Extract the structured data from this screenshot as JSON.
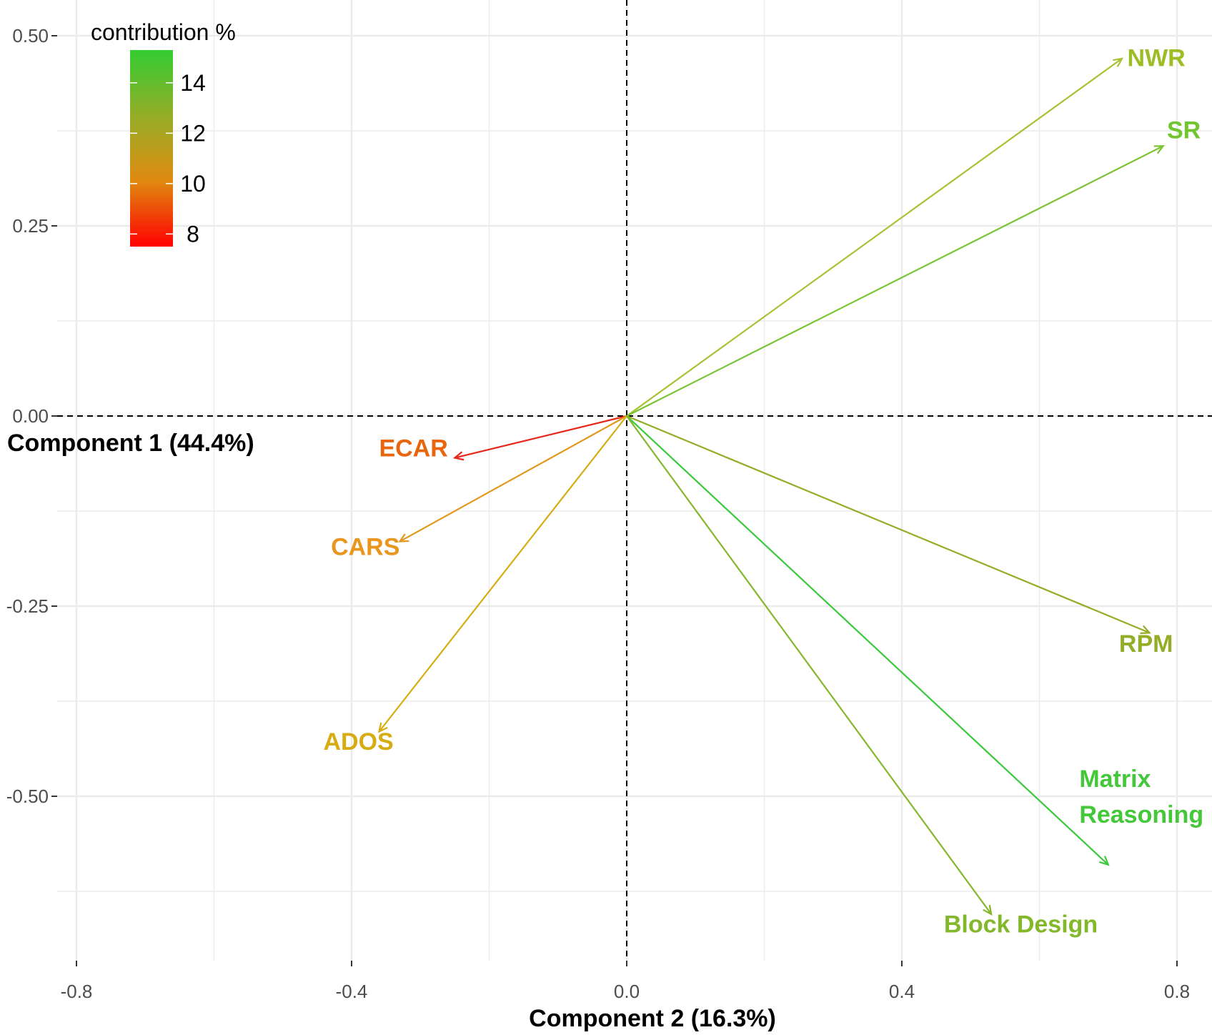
{
  "chart_data": {
    "type": "biplot",
    "xlabel": "Component 2 (16.3%)",
    "ylabel": "Component 1 (44.4%)",
    "xlim": [
      -0.82,
      0.82
    ],
    "ylim": [
      -0.66,
      0.54
    ],
    "x_ticks": [
      -0.8,
      -0.4,
      0.0,
      0.4,
      0.8
    ],
    "x_tick_labels": [
      "-0.8",
      "-0.4",
      "0.0",
      "0.4",
      "0.8"
    ],
    "y_ticks": [
      0.5,
      0.25,
      0.0,
      -0.25,
      -0.5
    ],
    "y_tick_labels": [
      "0.50",
      "0.25",
      "0.00",
      "-0.25",
      "-0.50"
    ],
    "grid": true,
    "reference_lines": {
      "x": 0,
      "y": 0,
      "style": "dashed"
    },
    "variables": [
      {
        "name": "NWR",
        "x": 0.72,
        "y": 0.47,
        "color": "#9dbd26",
        "line_color": "#a6c232",
        "label_x": 0.77,
        "label_y": 0.46
      },
      {
        "name": "SR",
        "x": 0.78,
        "y": 0.355,
        "color": "#72c530",
        "line_color": "#7cc433",
        "label_x": 0.81,
        "label_y": 0.365
      },
      {
        "name": "ECAR",
        "x": -0.25,
        "y": -0.055,
        "color": "#e8650e",
        "line_color": "#e8271c",
        "label_x": -0.31,
        "label_y": -0.053
      },
      {
        "name": "CARS",
        "x": -0.33,
        "y": -0.165,
        "color": "#e8961e",
        "line_color": "#e3981e",
        "label_x": -0.38,
        "label_y": -0.183
      },
      {
        "name": "ADOS",
        "x": -0.36,
        "y": -0.415,
        "color": "#d6ac12",
        "line_color": "#d6ac12",
        "label_x": -0.39,
        "label_y": -0.439
      },
      {
        "name": "RPM",
        "x": 0.76,
        "y": -0.285,
        "color": "#94ad27",
        "line_color": "#94ad27",
        "label_x": 0.755,
        "label_y": -0.31
      },
      {
        "name": "Matrix\nReasoning",
        "label_lines": [
          "Matrix",
          "Reasoning"
        ],
        "x": 0.7,
        "y": -0.59,
        "color": "#44c83a",
        "line_color": "#3ac93b",
        "label_x": 0.658,
        "label_y": -0.488
      },
      {
        "name": "Block Design",
        "x": 0.53,
        "y": -0.655,
        "color": "#84b82b",
        "line_color": "#84b82b",
        "label_x": 0.573,
        "label_y": -0.679
      }
    ],
    "legend": {
      "title": "contribution %",
      "placement": "top-left",
      "min": 7.5,
      "max": 15.3,
      "ticks": [
        14,
        12,
        10,
        8
      ],
      "tick_labels": [
        "14",
        "12",
        "10",
        "8"
      ],
      "colors": [
        "#ff0000",
        "#e08a10",
        "#94ad27",
        "#33cc33"
      ]
    }
  }
}
